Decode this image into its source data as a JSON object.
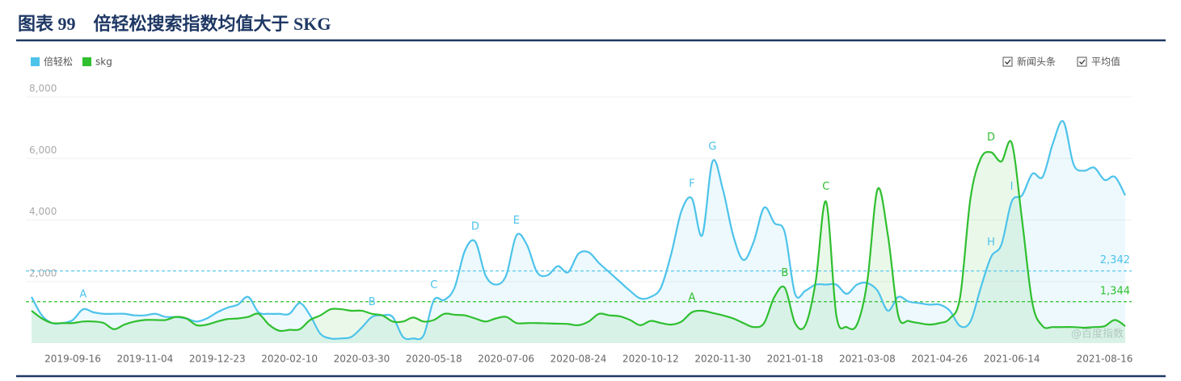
{
  "chart_data": {
    "type": "line",
    "title": "图表 99　倍轻松搜索指数均值大于 SKG",
    "controls": [
      "新闻头条",
      "平均值"
    ],
    "watermark": "@百度指数",
    "categories": [
      null,
      null,
      null,
      null,
      "2019-09-16",
      null,
      null,
      null,
      null,
      null,
      null,
      "2019-11-04",
      null,
      null,
      null,
      null,
      null,
      null,
      "2019-12-23",
      null,
      null,
      null,
      null,
      null,
      null,
      "2020-02-10",
      null,
      null,
      null,
      null,
      null,
      null,
      "2020-03-30",
      null,
      null,
      null,
      null,
      null,
      null,
      "2020-05-18",
      null,
      null,
      null,
      null,
      null,
      null,
      "2020-07-06",
      null,
      null,
      null,
      null,
      null,
      null,
      "2020-08-24",
      null,
      null,
      null,
      null,
      null,
      null,
      "2020-10-12",
      null,
      null,
      null,
      null,
      null,
      null,
      "2020-11-30",
      null,
      null,
      null,
      null,
      null,
      null,
      "2021-01-18",
      null,
      null,
      null,
      null,
      null,
      null,
      "2021-03-08",
      null,
      null,
      null,
      null,
      null,
      null,
      "2021-04-26",
      null,
      null,
      null,
      null,
      null,
      null,
      "2021-06-14",
      null,
      null,
      null,
      null,
      null,
      null,
      null,
      null,
      "2021-08-16",
      null,
      null
    ],
    "series": [
      {
        "name": "倍轻松",
        "color": "#4dc3ea",
        "values": [
          1500,
          900,
          650,
          650,
          750,
          1100,
          1000,
          950,
          950,
          950,
          900,
          900,
          950,
          850,
          850,
          800,
          700,
          800,
          1000,
          1150,
          1250,
          1500,
          1000,
          950,
          950,
          950,
          1300,
          900,
          300,
          150,
          150,
          200,
          500,
          850,
          900,
          850,
          200,
          150,
          250,
          1400,
          1400,
          1800,
          3000,
          3300,
          2200,
          1900,
          2200,
          3500,
          3200,
          2300,
          2200,
          2500,
          2300,
          2900,
          2950,
          2600,
          2300,
          2000,
          1700,
          1450,
          1500,
          1800,
          2900,
          4300,
          4700,
          3500,
          5900,
          5000,
          3500,
          2700,
          3300,
          4400,
          3900,
          3600,
          1600,
          1700,
          1900,
          1900,
          1900,
          1600,
          1900,
          1950,
          1700,
          1050,
          1500,
          1350,
          1300,
          1250,
          1250,
          1050,
          550,
          700,
          1800,
          2800,
          3200,
          4600,
          4800,
          5500,
          5400,
          6500,
          7200,
          5800,
          5600,
          5700,
          5300,
          5400,
          4800
        ],
        "point_labels": [
          null,
          null,
          null,
          null,
          null,
          "A",
          null,
          null,
          null,
          null,
          null,
          null,
          null,
          null,
          null,
          null,
          null,
          null,
          null,
          null,
          null,
          null,
          null,
          null,
          null,
          null,
          null,
          null,
          null,
          null,
          null,
          null,
          null,
          "B",
          null,
          null,
          null,
          null,
          null,
          "C",
          null,
          null,
          null,
          "D",
          null,
          null,
          null,
          "E",
          null,
          null,
          null,
          null,
          null,
          null,
          null,
          null,
          null,
          null,
          null,
          null,
          null,
          null,
          null,
          null,
          "F",
          null,
          "G",
          null,
          null,
          null,
          null,
          null,
          null,
          null,
          null,
          null,
          null,
          null,
          null,
          null,
          null,
          null,
          null,
          null,
          null,
          null,
          null,
          null,
          null,
          null,
          null,
          null,
          null,
          "H",
          null,
          "I",
          null,
          null,
          null,
          null,
          null,
          null,
          null,
          null,
          null,
          null,
          null
        ]
      },
      {
        "name": "skg",
        "color": "#2fbf2f",
        "values": [
          1050,
          800,
          650,
          650,
          650,
          700,
          700,
          650,
          450,
          600,
          700,
          750,
          750,
          750,
          850,
          800,
          580,
          600,
          700,
          780,
          800,
          850,
          950,
          600,
          400,
          430,
          450,
          750,
          900,
          1100,
          1100,
          1050,
          1050,
          950,
          900,
          700,
          700,
          830,
          700,
          750,
          950,
          920,
          900,
          800,
          700,
          800,
          850,
          650,
          650,
          650,
          640,
          630,
          620,
          580,
          700,
          950,
          900,
          870,
          750,
          580,
          720,
          650,
          600,
          700,
          1000,
          1050,
          980,
          900,
          800,
          650,
          520,
          650,
          1500,
          1800,
          650,
          580,
          2000,
          4600,
          900,
          520,
          600,
          2000,
          5000,
          3500,
          900,
          720,
          650,
          600,
          650,
          800,
          1500,
          4700,
          6000,
          6200,
          5900,
          6500,
          4000,
          1300,
          550,
          520,
          520,
          520,
          500,
          520,
          550,
          750,
          550
        ],
        "point_labels": [
          null,
          null,
          null,
          null,
          null,
          null,
          null,
          null,
          null,
          null,
          null,
          null,
          null,
          null,
          null,
          null,
          null,
          null,
          null,
          null,
          null,
          null,
          null,
          null,
          null,
          null,
          null,
          null,
          null,
          null,
          null,
          null,
          null,
          null,
          null,
          null,
          null,
          null,
          null,
          null,
          null,
          null,
          null,
          null,
          null,
          null,
          null,
          null,
          null,
          null,
          null,
          null,
          null,
          null,
          null,
          null,
          null,
          null,
          null,
          null,
          null,
          null,
          null,
          null,
          "A",
          null,
          null,
          null,
          null,
          null,
          null,
          null,
          null,
          "B",
          null,
          null,
          null,
          "C",
          null,
          null,
          null,
          null,
          null,
          null,
          null,
          null,
          null,
          null,
          null,
          null,
          null,
          null,
          null,
          "D",
          null,
          null,
          null,
          null,
          null,
          null,
          null,
          null,
          null,
          null,
          null,
          null,
          null
        ]
      }
    ],
    "reference_lines": [
      {
        "value": 2342,
        "label": "2,342",
        "color": "#4dc3ea"
      },
      {
        "value": 1344,
        "label": "1,344",
        "color": "#2fbf2f"
      }
    ],
    "ylim": [
      0,
      8000
    ],
    "yticks": [
      {
        "value": 2000,
        "label": "2,000"
      },
      {
        "value": 4000,
        "label": "4,000"
      },
      {
        "value": 6000,
        "label": "6,000"
      },
      {
        "value": 8000,
        "label": "8,000"
      }
    ],
    "grid": true,
    "legend": "top-left"
  }
}
